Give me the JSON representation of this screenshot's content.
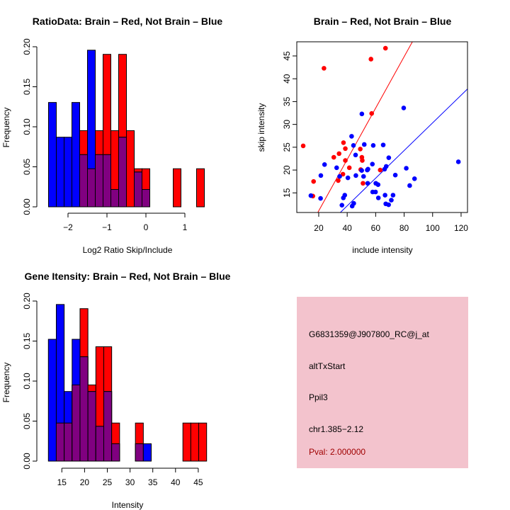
{
  "colors": {
    "red": "#ff0000",
    "blue": "#0000ff",
    "overlap": "#800080",
    "info_bg": "#f3c3cd",
    "pval": "#a00000"
  },
  "chart_data": [
    {
      "type": "bar",
      "title": "RatioData: Brain – Red, Not Brain – Blue",
      "xlabel": "Log2 Ratio Skip/Include",
      "ylabel": "Frequency",
      "bin_start": -2.5,
      "bin_width": 0.2,
      "xticks": [
        -2,
        -1,
        0,
        1
      ],
      "xtick_labels": [
        "−2",
        "−1",
        "0",
        "1"
      ],
      "yticks": [
        0,
        0.05,
        0.1,
        0.15,
        0.2
      ],
      "ytick_labels": [
        "0.00",
        "0.05",
        "0.10",
        "0.15",
        "0.20"
      ],
      "ylim": [
        0,
        0.2
      ],
      "series": [
        {
          "name": "Brain",
          "color": "red",
          "values": [
            0,
            0,
            0,
            0,
            0.0952,
            0.0476,
            0.0952,
            0.1905,
            0.0952,
            0.1905,
            0.0952,
            0.0476,
            0.0476,
            0,
            0,
            0,
            0.0476,
            0,
            0,
            0.0476
          ]
        },
        {
          "name": "Not Brain",
          "color": "blue",
          "values": [
            0.1304,
            0.087,
            0.087,
            0.1304,
            0.0652,
            0.1957,
            0.0652,
            0.0652,
            0.0217,
            0.087,
            0,
            0.0435,
            0.0217,
            0,
            0,
            0,
            0,
            0,
            0,
            0
          ]
        }
      ]
    },
    {
      "type": "scatter",
      "title": "Brain – Red, Not Brain – Blue",
      "xlabel": "include intensity",
      "ylabel": "skip intensity",
      "xticks": [
        20,
        40,
        60,
        80,
        100,
        120
      ],
      "yticks": [
        15,
        20,
        25,
        30,
        35,
        40,
        45
      ],
      "xlim": [
        4.6,
        124.5
      ],
      "ylim": [
        10.7,
        48.1
      ],
      "series": [
        {
          "name": "Brain",
          "color": "red",
          "fit": {
            "intercept": -0.2,
            "slope": 0.563
          },
          "points": [
            [
              9.1,
              25.3
            ],
            [
              15.9,
              14.3
            ],
            [
              16.4,
              17.5
            ],
            [
              23.7,
              42.3
            ],
            [
              30.6,
              22.8
            ],
            [
              34.3,
              23.6
            ],
            [
              33.7,
              17.7
            ],
            [
              37.0,
              19.1
            ],
            [
              37.4,
              26.0
            ],
            [
              38.7,
              24.7
            ],
            [
              38.7,
              22.1
            ],
            [
              41.5,
              20.5
            ],
            [
              49.2,
              24.6
            ],
            [
              50.3,
              22.8
            ],
            [
              50.6,
              22.1
            ],
            [
              49.5,
              20.1
            ],
            [
              51.1,
              17.1
            ],
            [
              56.7,
              44.3
            ],
            [
              57.2,
              32.4
            ],
            [
              63.2,
              20.0
            ],
            [
              66.9,
              46.7
            ]
          ]
        },
        {
          "name": "Not Brain",
          "color": "blue",
          "fit": {
            "intercept": 0.04,
            "slope": 0.303
          },
          "points": [
            [
              14.5,
              14.4
            ],
            [
              21.3,
              13.8
            ],
            [
              21.5,
              18.8
            ],
            [
              24.1,
              21.2
            ],
            [
              32.6,
              20.5
            ],
            [
              34.7,
              18.6
            ],
            [
              36.3,
              12.3
            ],
            [
              37.3,
              13.9
            ],
            [
              38.3,
              14.5
            ],
            [
              40.5,
              18.3
            ],
            [
              43.1,
              27.4
            ],
            [
              43.5,
              12.1
            ],
            [
              44.6,
              12.7
            ],
            [
              44.4,
              25.4
            ],
            [
              45.9,
              23.3
            ],
            [
              46.1,
              18.8
            ],
            [
              50.3,
              32.3
            ],
            [
              50.2,
              19.9
            ],
            [
              51.5,
              18.6
            ],
            [
              52.0,
              25.6
            ],
            [
              54.1,
              20.0
            ],
            [
              54.6,
              20.2
            ],
            [
              54.4,
              17.1
            ],
            [
              57.7,
              21.3
            ],
            [
              58.3,
              25.4
            ],
            [
              57.9,
              15.2
            ],
            [
              59.9,
              15.2
            ],
            [
              60.1,
              17.1
            ],
            [
              61.7,
              16.8
            ],
            [
              61.9,
              13.9
            ],
            [
              65.3,
              25.5
            ],
            [
              66.3,
              20.2
            ],
            [
              67.4,
              20.8
            ],
            [
              66.6,
              14.5
            ],
            [
              67.1,
              12.6
            ],
            [
              69.1,
              12.4
            ],
            [
              69.2,
              22.7
            ],
            [
              71.0,
              13.4
            ],
            [
              72.2,
              14.5
            ],
            [
              73.8,
              18.9
            ],
            [
              79.7,
              33.6
            ],
            [
              81.5,
              20.4
            ],
            [
              83.9,
              16.6
            ],
            [
              87.3,
              18.1
            ],
            [
              118.1,
              21.8
            ]
          ]
        }
      ]
    },
    {
      "type": "bar",
      "title": "Gene Itensity: Brain – Red, Not Brain – Blue",
      "xlabel": "Intensity",
      "ylabel": "Frequency",
      "bin_start": 12.04,
      "bin_width": 1.74,
      "xticks": [
        15,
        20,
        25,
        30,
        35,
        40,
        45
      ],
      "xtick_labels": [
        "15",
        "20",
        "25",
        "30",
        "35",
        "40",
        "45"
      ],
      "yticks": [
        0,
        0.05,
        0.1,
        0.15,
        0.2
      ],
      "ytick_labels": [
        "0.00",
        "0.05",
        "0.10",
        "0.15",
        "0.20"
      ],
      "ylim": [
        0,
        0.2
      ],
      "series": [
        {
          "name": "Brain",
          "color": "red",
          "values": [
            0,
            0.0476,
            0.0476,
            0.0952,
            0.1905,
            0.0952,
            0.1429,
            0.1429,
            0.0476,
            0,
            0,
            0.0476,
            0,
            0,
            0,
            0,
            0,
            0.0476,
            0.0476,
            0.0476
          ]
        },
        {
          "name": "Not Brain",
          "color": "blue",
          "values": [
            0.1522,
            0.1957,
            0.087,
            0.1522,
            0.1304,
            0.087,
            0.0435,
            0.087,
            0.0217,
            0,
            0,
            0.0217,
            0.0217,
            0,
            0,
            0,
            0,
            0,
            0,
            0
          ]
        }
      ]
    }
  ],
  "info": {
    "probe": "G6831359@J907800_RC@j_at",
    "event": "altTxStart",
    "gene": "Ppil3",
    "location": "chr1.385−2.12",
    "pval": "Pval: 2.000000"
  }
}
